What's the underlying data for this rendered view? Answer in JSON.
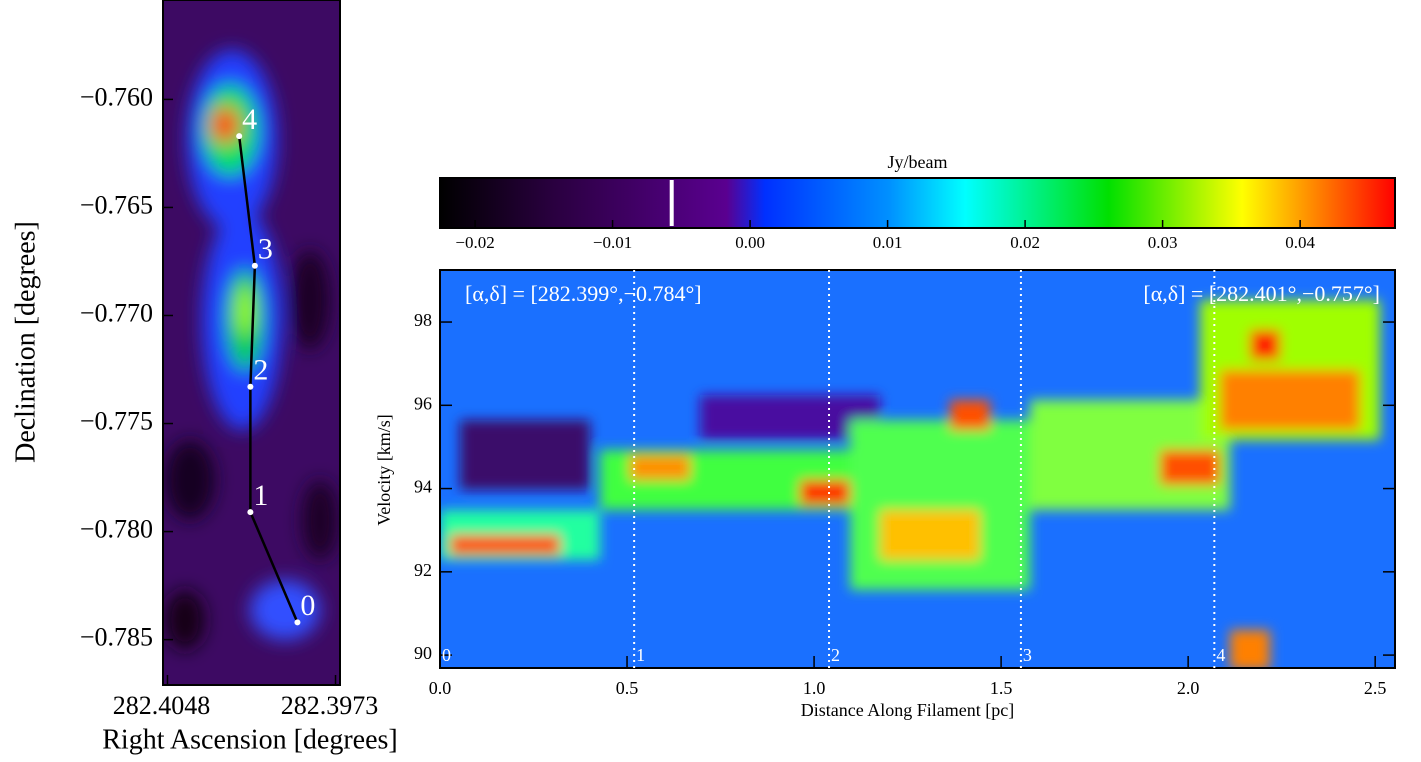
{
  "chart_data": [
    {
      "type": "image",
      "xlabel": "Right Ascension [degrees]",
      "ylabel": "Declination [degrees]",
      "xlim": [
        282.405,
        282.3971
      ],
      "xticks": [
        282.4048,
        282.3973
      ],
      "ylim": [
        -0.7871,
        -0.7554
      ],
      "yticks": [
        {
          "value": -0.76,
          "label": "−0.760"
        },
        {
          "value": -0.765,
          "label": "−0.765"
        },
        {
          "value": -0.77,
          "label": "−0.770"
        },
        {
          "value": -0.775,
          "label": "−0.775"
        },
        {
          "value": -0.78,
          "label": "−0.780"
        },
        {
          "value": -0.785,
          "label": "−0.785"
        }
      ],
      "track": {
        "labels": [
          "0",
          "1",
          "2",
          "3",
          "4"
        ],
        "x": [
          282.399,
          282.4011,
          282.4011,
          282.4009,
          282.4016
        ],
        "y": [
          -0.7842,
          -0.7791,
          -0.7733,
          -0.7677,
          -0.7617
        ]
      }
    },
    {
      "type": "colorbar",
      "title": "Jy/beam",
      "xlim": [
        -0.02255,
        0.0469
      ],
      "xticks": [
        {
          "value": -0.02,
          "label": "−0.02"
        },
        {
          "value": -0.01,
          "label": "−0.01"
        },
        {
          "value": 0,
          "label": "0.00"
        },
        0.01,
        0.02,
        0.03,
        0.04
      ],
      "marker": -0.0057
    },
    {
      "type": "heatmap",
      "xlabel": "Distance Along Filament [pc]",
      "ylabel": "Velocity [km/s]",
      "xlim": [
        0,
        2.553
      ],
      "ylim": [
        89.69,
        99.25
      ],
      "xticks": [
        {
          "value": 0,
          "label": "0.0"
        },
        0.5,
        {
          "value": 1,
          "label": "1.0"
        },
        1.5,
        {
          "value": 2,
          "label": "2.0"
        },
        2.5
      ],
      "yticks": [
        90,
        92,
        94,
        96,
        98
      ],
      "annotations": [
        "[α,δ] = [282.399°,−0.784°]",
        "[α,δ] = [282.401°,−0.757°]"
      ],
      "markers": {
        "labels": [
          "0",
          "1",
          "2",
          "3",
          "4"
        ],
        "x": [
          0,
          0.519,
          1.04,
          1.553,
          2.07
        ]
      }
    }
  ]
}
